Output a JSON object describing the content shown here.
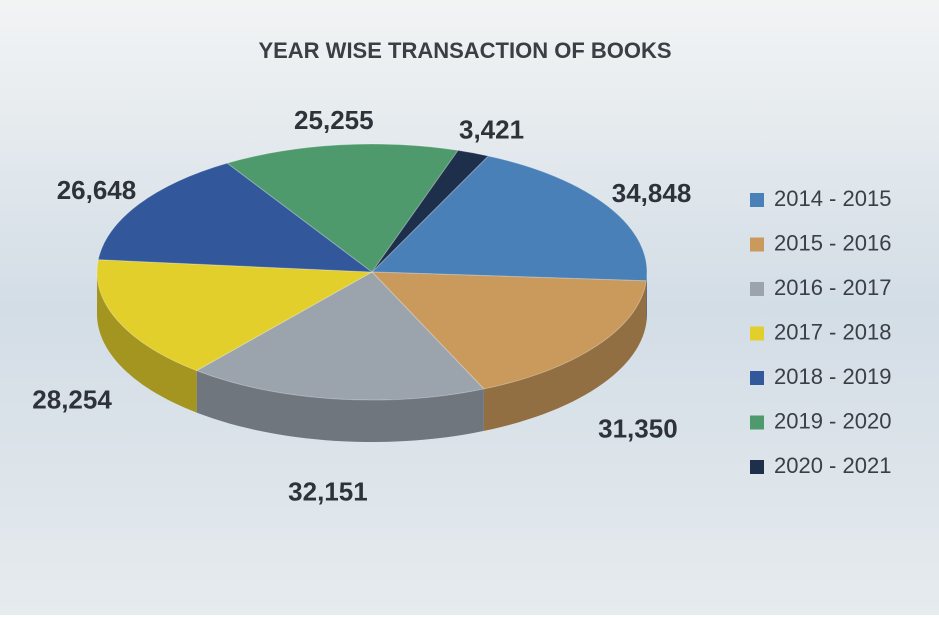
{
  "chart_data": {
    "type": "pie",
    "title": "YEAR WISE TRANSACTION OF BOOKS",
    "categories": [
      "2014 - 2015",
      "2015 - 2016",
      "2016 - 2017",
      "2017 - 2018",
      "2018 - 2019",
      "2019 - 2020",
      "2020 - 2021"
    ],
    "values": [
      34848,
      31350,
      32151,
      28254,
      26648,
      25255,
      3421
    ],
    "value_labels": [
      "34,848",
      "31,350",
      "32,151",
      "28,254",
      "26,648",
      "25,255",
      "3,421"
    ],
    "colors": [
      "#4a80b8",
      "#c99a5c",
      "#9ba4ad",
      "#e2cf2c",
      "#33579b",
      "#4f9a6d",
      "#1e2f4b"
    ],
    "legend": "right"
  }
}
